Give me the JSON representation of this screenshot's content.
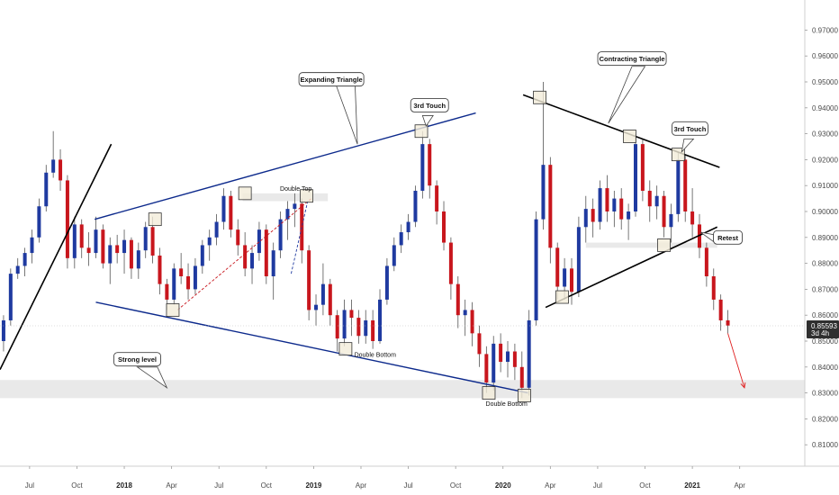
{
  "colors": {
    "up": "#1f3aa0",
    "down": "#c8161d",
    "wick": "#555555",
    "trend_blue": "#0d2a8c",
    "trend_black": "#000000",
    "zone_fill": "#e9e9e9",
    "touch_fill": "#f3ecd9",
    "touch_stroke": "#333333",
    "price_tag": "#2f2f2f",
    "arrow": "#e02020"
  },
  "chart_data": {
    "type": "candlestick",
    "ylim": [
      0.8,
      0.975
    ],
    "xlim": [
      0,
      68
    ],
    "y_ticks": [
      "0.97000",
      "0.96000",
      "0.95000",
      "0.94000",
      "0.93000",
      "0.92000",
      "0.91000",
      "0.90000",
      "0.89000",
      "0.88000",
      "0.87000",
      "0.86000",
      "0.85000",
      "0.84000",
      "0.83000",
      "0.82000",
      "0.81000"
    ],
    "x_ticks": [
      {
        "label": "Jul",
        "x": 2.5,
        "bold": false
      },
      {
        "label": "Oct",
        "x": 6.5,
        "bold": false
      },
      {
        "label": "2018",
        "x": 10.5,
        "bold": true
      },
      {
        "label": "Apr",
        "x": 14.5,
        "bold": false
      },
      {
        "label": "Jul",
        "x": 18.5,
        "bold": false
      },
      {
        "label": "Oct",
        "x": 22.5,
        "bold": false
      },
      {
        "label": "2019",
        "x": 26.5,
        "bold": true
      },
      {
        "label": "Apr",
        "x": 30.5,
        "bold": false
      },
      {
        "label": "Jul",
        "x": 34.5,
        "bold": false
      },
      {
        "label": "Oct",
        "x": 38.5,
        "bold": false
      },
      {
        "label": "2020",
        "x": 42.5,
        "bold": true
      },
      {
        "label": "Apr",
        "x": 46.5,
        "bold": false
      },
      {
        "label": "Jul",
        "x": 50.5,
        "bold": false
      },
      {
        "label": "Oct",
        "x": 54.5,
        "bold": false
      },
      {
        "label": "2021",
        "x": 58.5,
        "bold": true
      },
      {
        "label": "Apr",
        "x": 62.5,
        "bold": false
      }
    ],
    "candles": [
      {
        "x": 0.3,
        "o": 0.85,
        "h": 0.86,
        "l": 0.846,
        "c": 0.858
      },
      {
        "x": 0.9,
        "o": 0.858,
        "h": 0.878,
        "l": 0.856,
        "c": 0.876
      },
      {
        "x": 1.5,
        "o": 0.876,
        "h": 0.882,
        "l": 0.874,
        "c": 0.879
      },
      {
        "x": 2.1,
        "o": 0.879,
        "h": 0.886,
        "l": 0.875,
        "c": 0.884
      },
      {
        "x": 2.7,
        "o": 0.884,
        "h": 0.893,
        "l": 0.88,
        "c": 0.89
      },
      {
        "x": 3.3,
        "o": 0.89,
        "h": 0.905,
        "l": 0.888,
        "c": 0.902
      },
      {
        "x": 3.9,
        "o": 0.902,
        "h": 0.918,
        "l": 0.9,
        "c": 0.915
      },
      {
        "x": 4.5,
        "o": 0.915,
        "h": 0.931,
        "l": 0.913,
        "c": 0.92
      },
      {
        "x": 5.1,
        "o": 0.92,
        "h": 0.924,
        "l": 0.908,
        "c": 0.912
      },
      {
        "x": 5.7,
        "o": 0.912,
        "h": 0.914,
        "l": 0.878,
        "c": 0.882
      },
      {
        "x": 6.3,
        "o": 0.882,
        "h": 0.898,
        "l": 0.878,
        "c": 0.895
      },
      {
        "x": 6.9,
        "o": 0.895,
        "h": 0.897,
        "l": 0.882,
        "c": 0.886
      },
      {
        "x": 7.5,
        "o": 0.886,
        "h": 0.892,
        "l": 0.879,
        "c": 0.884
      },
      {
        "x": 8.1,
        "o": 0.884,
        "h": 0.898,
        "l": 0.882,
        "c": 0.893
      },
      {
        "x": 8.7,
        "o": 0.893,
        "h": 0.895,
        "l": 0.878,
        "c": 0.88
      },
      {
        "x": 9.3,
        "o": 0.88,
        "h": 0.89,
        "l": 0.872,
        "c": 0.887
      },
      {
        "x": 9.9,
        "o": 0.887,
        "h": 0.891,
        "l": 0.88,
        "c": 0.884
      },
      {
        "x": 10.5,
        "o": 0.884,
        "h": 0.893,
        "l": 0.876,
        "c": 0.889
      },
      {
        "x": 11.1,
        "o": 0.889,
        "h": 0.89,
        "l": 0.874,
        "c": 0.878
      },
      {
        "x": 11.7,
        "o": 0.878,
        "h": 0.888,
        "l": 0.874,
        "c": 0.885
      },
      {
        "x": 12.3,
        "o": 0.885,
        "h": 0.896,
        "l": 0.882,
        "c": 0.894
      },
      {
        "x": 12.9,
        "o": 0.894,
        "h": 0.898,
        "l": 0.88,
        "c": 0.883
      },
      {
        "x": 13.5,
        "o": 0.883,
        "h": 0.886,
        "l": 0.868,
        "c": 0.872
      },
      {
        "x": 14.1,
        "o": 0.872,
        "h": 0.874,
        "l": 0.862,
        "c": 0.866
      },
      {
        "x": 14.7,
        "o": 0.866,
        "h": 0.88,
        "l": 0.864,
        "c": 0.878
      },
      {
        "x": 15.3,
        "o": 0.878,
        "h": 0.884,
        "l": 0.872,
        "c": 0.875
      },
      {
        "x": 15.9,
        "o": 0.875,
        "h": 0.88,
        "l": 0.866,
        "c": 0.87
      },
      {
        "x": 16.5,
        "o": 0.87,
        "h": 0.882,
        "l": 0.868,
        "c": 0.879
      },
      {
        "x": 17.1,
        "o": 0.879,
        "h": 0.889,
        "l": 0.876,
        "c": 0.887
      },
      {
        "x": 17.7,
        "o": 0.887,
        "h": 0.893,
        "l": 0.881,
        "c": 0.89
      },
      {
        "x": 18.3,
        "o": 0.89,
        "h": 0.899,
        "l": 0.887,
        "c": 0.896
      },
      {
        "x": 18.9,
        "o": 0.896,
        "h": 0.909,
        "l": 0.893,
        "c": 0.906
      },
      {
        "x": 19.5,
        "o": 0.906,
        "h": 0.908,
        "l": 0.89,
        "c": 0.893
      },
      {
        "x": 20.1,
        "o": 0.893,
        "h": 0.897,
        "l": 0.883,
        "c": 0.887
      },
      {
        "x": 20.7,
        "o": 0.887,
        "h": 0.892,
        "l": 0.875,
        "c": 0.878
      },
      {
        "x": 21.3,
        "o": 0.878,
        "h": 0.887,
        "l": 0.872,
        "c": 0.884
      },
      {
        "x": 21.9,
        "o": 0.884,
        "h": 0.896,
        "l": 0.881,
        "c": 0.893
      },
      {
        "x": 22.5,
        "o": 0.893,
        "h": 0.895,
        "l": 0.872,
        "c": 0.875
      },
      {
        "x": 23.1,
        "o": 0.875,
        "h": 0.888,
        "l": 0.866,
        "c": 0.885
      },
      {
        "x": 23.7,
        "o": 0.885,
        "h": 0.9,
        "l": 0.882,
        "c": 0.897
      },
      {
        "x": 24.3,
        "o": 0.897,
        "h": 0.904,
        "l": 0.889,
        "c": 0.901
      },
      {
        "x": 24.9,
        "o": 0.901,
        "h": 0.907,
        "l": 0.894,
        "c": 0.903
      },
      {
        "x": 25.5,
        "o": 0.903,
        "h": 0.905,
        "l": 0.88,
        "c": 0.885
      },
      {
        "x": 26.1,
        "o": 0.885,
        "h": 0.887,
        "l": 0.858,
        "c": 0.862
      },
      {
        "x": 26.7,
        "o": 0.862,
        "h": 0.868,
        "l": 0.856,
        "c": 0.864
      },
      {
        "x": 27.3,
        "o": 0.864,
        "h": 0.88,
        "l": 0.86,
        "c": 0.872
      },
      {
        "x": 27.9,
        "o": 0.872,
        "h": 0.874,
        "l": 0.856,
        "c": 0.86
      },
      {
        "x": 28.5,
        "o": 0.86,
        "h": 0.862,
        "l": 0.846,
        "c": 0.851
      },
      {
        "x": 29.1,
        "o": 0.851,
        "h": 0.866,
        "l": 0.848,
        "c": 0.862
      },
      {
        "x": 29.7,
        "o": 0.862,
        "h": 0.866,
        "l": 0.852,
        "c": 0.859
      },
      {
        "x": 30.3,
        "o": 0.859,
        "h": 0.862,
        "l": 0.849,
        "c": 0.852
      },
      {
        "x": 30.9,
        "o": 0.852,
        "h": 0.862,
        "l": 0.849,
        "c": 0.858
      },
      {
        "x": 31.5,
        "o": 0.858,
        "h": 0.862,
        "l": 0.847,
        "c": 0.85
      },
      {
        "x": 32.1,
        "o": 0.85,
        "h": 0.87,
        "l": 0.849,
        "c": 0.866
      },
      {
        "x": 32.7,
        "o": 0.866,
        "h": 0.882,
        "l": 0.864,
        "c": 0.879
      },
      {
        "x": 33.3,
        "o": 0.879,
        "h": 0.89,
        "l": 0.877,
        "c": 0.887
      },
      {
        "x": 33.9,
        "o": 0.887,
        "h": 0.895,
        "l": 0.884,
        "c": 0.892
      },
      {
        "x": 34.5,
        "o": 0.892,
        "h": 0.899,
        "l": 0.889,
        "c": 0.896
      },
      {
        "x": 35.1,
        "o": 0.896,
        "h": 0.91,
        "l": 0.894,
        "c": 0.908
      },
      {
        "x": 35.7,
        "o": 0.908,
        "h": 0.931,
        "l": 0.905,
        "c": 0.926
      },
      {
        "x": 36.3,
        "o": 0.926,
        "h": 0.928,
        "l": 0.905,
        "c": 0.91
      },
      {
        "x": 36.9,
        "o": 0.91,
        "h": 0.912,
        "l": 0.895,
        "c": 0.9
      },
      {
        "x": 37.5,
        "o": 0.9,
        "h": 0.904,
        "l": 0.885,
        "c": 0.888
      },
      {
        "x": 38.1,
        "o": 0.888,
        "h": 0.89,
        "l": 0.866,
        "c": 0.872
      },
      {
        "x": 38.7,
        "o": 0.872,
        "h": 0.875,
        "l": 0.855,
        "c": 0.86
      },
      {
        "x": 39.3,
        "o": 0.86,
        "h": 0.866,
        "l": 0.852,
        "c": 0.862
      },
      {
        "x": 39.9,
        "o": 0.862,
        "h": 0.865,
        "l": 0.848,
        "c": 0.853
      },
      {
        "x": 40.5,
        "o": 0.853,
        "h": 0.856,
        "l": 0.84,
        "c": 0.845
      },
      {
        "x": 41.1,
        "o": 0.845,
        "h": 0.848,
        "l": 0.83,
        "c": 0.834
      },
      {
        "x": 41.7,
        "o": 0.834,
        "h": 0.852,
        "l": 0.831,
        "c": 0.849
      },
      {
        "x": 42.3,
        "o": 0.849,
        "h": 0.853,
        "l": 0.838,
        "c": 0.842
      },
      {
        "x": 42.9,
        "o": 0.842,
        "h": 0.85,
        "l": 0.836,
        "c": 0.846
      },
      {
        "x": 43.5,
        "o": 0.846,
        "h": 0.849,
        "l": 0.835,
        "c": 0.84
      },
      {
        "x": 44.1,
        "o": 0.84,
        "h": 0.846,
        "l": 0.828,
        "c": 0.832
      },
      {
        "x": 44.7,
        "o": 0.832,
        "h": 0.862,
        "l": 0.829,
        "c": 0.858
      },
      {
        "x": 45.3,
        "o": 0.858,
        "h": 0.9,
        "l": 0.856,
        "c": 0.897
      },
      {
        "x": 45.9,
        "o": 0.897,
        "h": 0.95,
        "l": 0.893,
        "c": 0.918
      },
      {
        "x": 46.5,
        "o": 0.918,
        "h": 0.921,
        "l": 0.88,
        "c": 0.886
      },
      {
        "x": 47.1,
        "o": 0.886,
        "h": 0.888,
        "l": 0.866,
        "c": 0.871
      },
      {
        "x": 47.7,
        "o": 0.871,
        "h": 0.882,
        "l": 0.866,
        "c": 0.878
      },
      {
        "x": 48.3,
        "o": 0.878,
        "h": 0.882,
        "l": 0.864,
        "c": 0.869
      },
      {
        "x": 48.9,
        "o": 0.869,
        "h": 0.898,
        "l": 0.867,
        "c": 0.894
      },
      {
        "x": 49.5,
        "o": 0.894,
        "h": 0.906,
        "l": 0.888,
        "c": 0.901
      },
      {
        "x": 50.1,
        "o": 0.901,
        "h": 0.905,
        "l": 0.89,
        "c": 0.896
      },
      {
        "x": 50.7,
        "o": 0.896,
        "h": 0.912,
        "l": 0.893,
        "c": 0.909
      },
      {
        "x": 51.3,
        "o": 0.909,
        "h": 0.914,
        "l": 0.896,
        "c": 0.9
      },
      {
        "x": 51.9,
        "o": 0.9,
        "h": 0.908,
        "l": 0.894,
        "c": 0.905
      },
      {
        "x": 52.5,
        "o": 0.905,
        "h": 0.909,
        "l": 0.893,
        "c": 0.897
      },
      {
        "x": 53.1,
        "o": 0.897,
        "h": 0.903,
        "l": 0.889,
        "c": 0.9
      },
      {
        "x": 53.7,
        "o": 0.9,
        "h": 0.93,
        "l": 0.898,
        "c": 0.926
      },
      {
        "x": 54.3,
        "o": 0.926,
        "h": 0.928,
        "l": 0.904,
        "c": 0.908
      },
      {
        "x": 54.9,
        "o": 0.908,
        "h": 0.912,
        "l": 0.896,
        "c": 0.902
      },
      {
        "x": 55.5,
        "o": 0.902,
        "h": 0.91,
        "l": 0.897,
        "c": 0.906
      },
      {
        "x": 56.1,
        "o": 0.906,
        "h": 0.908,
        "l": 0.89,
        "c": 0.894
      },
      {
        "x": 56.7,
        "o": 0.894,
        "h": 0.903,
        "l": 0.888,
        "c": 0.899
      },
      {
        "x": 57.3,
        "o": 0.899,
        "h": 0.923,
        "l": 0.896,
        "c": 0.92
      },
      {
        "x": 57.9,
        "o": 0.92,
        "h": 0.922,
        "l": 0.896,
        "c": 0.9
      },
      {
        "x": 58.5,
        "o": 0.9,
        "h": 0.909,
        "l": 0.89,
        "c": 0.895
      },
      {
        "x": 59.1,
        "o": 0.895,
        "h": 0.899,
        "l": 0.882,
        "c": 0.886
      },
      {
        "x": 59.7,
        "o": 0.886,
        "h": 0.888,
        "l": 0.871,
        "c": 0.875
      },
      {
        "x": 60.3,
        "o": 0.875,
        "h": 0.878,
        "l": 0.862,
        "c": 0.866
      },
      {
        "x": 60.9,
        "o": 0.866,
        "h": 0.868,
        "l": 0.854,
        "c": 0.858
      },
      {
        "x": 61.5,
        "o": 0.858,
        "h": 0.862,
        "l": 0.853,
        "c": 0.856
      }
    ],
    "trendlines": [
      {
        "name": "early-uptrend-line",
        "color": "trend_black",
        "x1": 0,
        "y1": 0.839,
        "x2": 9.4,
        "y2": 0.926,
        "dash": false,
        "width": 1.6
      },
      {
        "name": "expanding-upper-line",
        "color": "trend_blue",
        "x1": 8.0,
        "y1": 0.897,
        "x2": 40.2,
        "y2": 0.938,
        "dash": false,
        "width": 1.4
      },
      {
        "name": "expanding-lower-line",
        "color": "trend_blue",
        "x1": 8.1,
        "y1": 0.865,
        "x2": 44.6,
        "y2": 0.83,
        "dash": false,
        "width": 1.4
      },
      {
        "name": "contracting-upper-line",
        "color": "trend_black",
        "x1": 44.2,
        "y1": 0.945,
        "x2": 60.8,
        "y2": 0.917,
        "dash": false,
        "width": 1.6
      },
      {
        "name": "contracting-lower-line",
        "color": "trend_black",
        "x1": 46.1,
        "y1": 0.863,
        "x2": 60.6,
        "y2": 0.894,
        "dash": false,
        "width": 1.6
      },
      {
        "name": "red-dashed-link",
        "color": "down",
        "x1": 15.0,
        "y1": 0.862,
        "x2": 26.3,
        "y2": 0.905,
        "dash": true,
        "width": 0.9
      },
      {
        "name": "blue-dashed-link",
        "color": "up",
        "x1": 24.6,
        "y1": 0.876,
        "x2": 26.0,
        "y2": 0.904,
        "dash": true,
        "width": 0.9
      }
    ],
    "zones": [
      {
        "name": "strong-level-zone",
        "x1": 0,
        "x2": 68,
        "y1": 0.828,
        "y2": 0.835
      },
      {
        "name": "double-top-zone",
        "x1": 20.5,
        "x2": 27.7,
        "y1": 0.904,
        "y2": 0.907
      },
      {
        "name": "retest-zone",
        "x1": 49.5,
        "x2": 60.6,
        "y1": 0.886,
        "y2": 0.888
      }
    ],
    "touch_boxes": [
      {
        "name": "touch-box-1",
        "x": 13.1,
        "y": 0.897
      },
      {
        "name": "touch-box-2",
        "x": 14.6,
        "y": 0.862
      },
      {
        "name": "touch-box-3",
        "x": 20.7,
        "y": 0.907
      },
      {
        "name": "touch-box-4",
        "x": 25.9,
        "y": 0.906
      },
      {
        "name": "touch-box-5",
        "x": 29.2,
        "y": 0.847
      },
      {
        "name": "touch-box-6",
        "x": 35.6,
        "y": 0.931
      },
      {
        "name": "touch-box-7",
        "x": 41.3,
        "y": 0.83
      },
      {
        "name": "touch-box-8",
        "x": 44.3,
        "y": 0.829
      },
      {
        "name": "touch-box-9",
        "x": 45.6,
        "y": 0.944
      },
      {
        "name": "touch-box-10",
        "x": 47.5,
        "y": 0.867
      },
      {
        "name": "touch-box-11",
        "x": 53.2,
        "y": 0.929
      },
      {
        "name": "touch-box-12",
        "x": 56.1,
        "y": 0.887
      },
      {
        "name": "touch-box-13",
        "x": 57.3,
        "y": 0.922
      }
    ],
    "callouts": [
      {
        "name": "callout-expanding-triangle",
        "text": "Expanding Triangle",
        "x": 28.0,
        "y": 0.951,
        "w": 72,
        "tail": [
          {
            "x": 28.3,
            "y": 0.95
          },
          {
            "x": 30.0,
            "y": 0.949
          },
          {
            "x": 30.2,
            "y": 0.926
          }
        ]
      },
      {
        "name": "callout-3rd-touch-1",
        "text": "3rd Touch",
        "x": 36.3,
        "y": 0.941,
        "w": 42,
        "tail": [
          {
            "x": 35.7,
            "y": 0.937
          },
          {
            "x": 36.6,
            "y": 0.937
          },
          {
            "x": 36.0,
            "y": 0.933
          }
        ]
      },
      {
        "name": "callout-strong-level",
        "text": "Strong level",
        "x": 11.6,
        "y": 0.843,
        "w": 52,
        "tail": [
          {
            "x": 11.6,
            "y": 0.84
          },
          {
            "x": 13.3,
            "y": 0.84
          },
          {
            "x": 14.1,
            "y": 0.832
          }
        ]
      },
      {
        "name": "callout-contracting-triangle",
        "text": "Contracting Triangle",
        "x": 53.4,
        "y": 0.959,
        "w": 76,
        "tail": [
          {
            "x": 53.4,
            "y": 0.956
          },
          {
            "x": 54.5,
            "y": 0.956
          },
          {
            "x": 51.4,
            "y": 0.934
          }
        ]
      },
      {
        "name": "callout-3rd-touch-2",
        "text": "3rd Touch",
        "x": 58.3,
        "y": 0.932,
        "w": 40,
        "tail": [
          {
            "x": 57.8,
            "y": 0.928
          },
          {
            "x": 58.6,
            "y": 0.928
          },
          {
            "x": 57.6,
            "y": 0.923
          }
        ]
      },
      {
        "name": "callout-retest",
        "text": "Retest",
        "x": 61.5,
        "y": 0.89,
        "w": 32,
        "tail": [
          {
            "x": 60.4,
            "y": 0.891
          },
          {
            "x": 60.4,
            "y": 0.888
          },
          {
            "x": 59.2,
            "y": 0.892
          }
        ]
      }
    ],
    "notes": [
      {
        "name": "note-double-top",
        "text": "Double Top",
        "x": 25.0,
        "y": 0.909
      },
      {
        "name": "note-double-bottom-1",
        "text": "Double Bottom",
        "x": 31.7,
        "y": 0.845
      },
      {
        "name": "note-double-bottom-2",
        "text": "Double Bottom",
        "x": 42.8,
        "y": 0.826
      }
    ],
    "current_price": {
      "value": "0.85593",
      "y": 0.8559,
      "countdown": "3d 4h"
    },
    "projection_arrow": {
      "x1": 61.5,
      "y1": 0.853,
      "x2": 62.9,
      "y2": 0.832
    },
    "grid": false,
    "legend": "none"
  }
}
